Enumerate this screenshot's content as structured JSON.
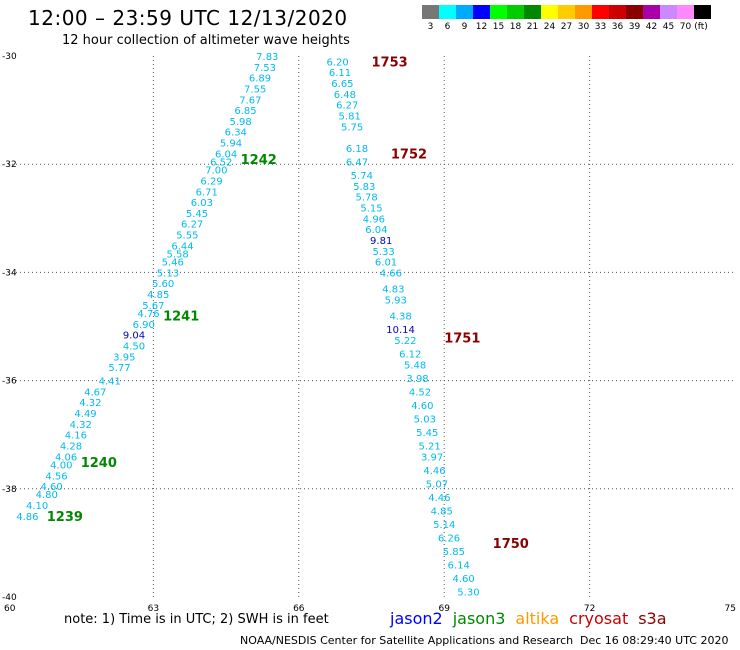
{
  "header": {
    "title": "12:00 – 23:59 UTC 12/13/2020",
    "subtitle": "12 hour collection of altimeter wave heights"
  },
  "legend": {
    "unit": "(ft)",
    "bins": [
      {
        "label": "3",
        "color": "#777777"
      },
      {
        "label": "6",
        "color": "#00ffff"
      },
      {
        "label": "9",
        "color": "#00aaff"
      },
      {
        "label": "12",
        "color": "#0000ff"
      },
      {
        "label": "15",
        "color": "#00ff00"
      },
      {
        "label": "18",
        "color": "#00cc00"
      },
      {
        "label": "21",
        "color": "#008800"
      },
      {
        "label": "24",
        "color": "#ffff00"
      },
      {
        "label": "27",
        "color": "#ffcc00"
      },
      {
        "label": "30",
        "color": "#ff9900"
      },
      {
        "label": "33",
        "color": "#ff0000"
      },
      {
        "label": "36",
        "color": "#cc0000"
      },
      {
        "label": "39",
        "color": "#880000"
      },
      {
        "label": "42",
        "color": "#aa00aa"
      },
      {
        "label": "45",
        "color": "#cc88ff"
      },
      {
        "label": "70",
        "color": "#ff88ff"
      },
      {
        "label": "",
        "color": "#000000"
      }
    ]
  },
  "axes": {
    "lon_min": 60,
    "lon_max": 75,
    "lat_min": -40,
    "lat_max": -30,
    "x_ticks": [
      60,
      63,
      66,
      69,
      72,
      75
    ],
    "x_tick_labels": [
      "60",
      "63",
      "66",
      "69",
      "72",
      "75"
    ],
    "y_ticks": [
      -30,
      -32,
      -34,
      -36,
      -38,
      -40
    ],
    "y_tick_labels": [
      "-30",
      "-32",
      "-34",
      "-36",
      "-38",
      "-40"
    ],
    "grid": true
  },
  "colors": {
    "swh_low": "#00bbee",
    "swh_high": "#0000cc",
    "jason2": "#0000ff",
    "jason3": "#008800",
    "altika": "#ff9900",
    "cryosat": "#cc0000",
    "s3a": "#880000"
  },
  "tracks": [
    {
      "pass_labels": [
        {
          "text": "1242",
          "lon": 64.8,
          "lat": -31.9,
          "color": "#008800"
        },
        {
          "text": "1241",
          "lon": 63.2,
          "lat": -34.8,
          "color": "#008800"
        },
        {
          "text": "1240",
          "lon": 61.5,
          "lat": -37.5,
          "color": "#008800"
        },
        {
          "text": "1239",
          "lon": 60.8,
          "lat": -38.5,
          "color": "#008800"
        }
      ],
      "points": [
        {
          "v": "7.83",
          "lon": 65.35,
          "lat": -30.0
        },
        {
          "v": "7.53",
          "lon": 65.3,
          "lat": -30.2
        },
        {
          "v": "6.89",
          "lon": 65.2,
          "lat": -30.4
        },
        {
          "v": "7.55",
          "lon": 65.1,
          "lat": -30.6
        },
        {
          "v": "7.67",
          "lon": 65.0,
          "lat": -30.8
        },
        {
          "v": "6.85",
          "lon": 64.9,
          "lat": -31.0
        },
        {
          "v": "5.98",
          "lon": 64.8,
          "lat": -31.2
        },
        {
          "v": "6.34",
          "lon": 64.7,
          "lat": -31.4
        },
        {
          "v": "5.94",
          "lon": 64.6,
          "lat": -31.6
        },
        {
          "v": "6.04",
          "lon": 64.5,
          "lat": -31.8
        },
        {
          "v": "6.52",
          "lon": 64.4,
          "lat": -31.95
        },
        {
          "v": "7.00",
          "lon": 64.3,
          "lat": -32.1
        },
        {
          "v": "6.29",
          "lon": 64.2,
          "lat": -32.3
        },
        {
          "v": "6.71",
          "lon": 64.1,
          "lat": -32.5
        },
        {
          "v": "6.03",
          "lon": 64.0,
          "lat": -32.7
        },
        {
          "v": "5.45",
          "lon": 63.9,
          "lat": -32.9
        },
        {
          "v": "6.27",
          "lon": 63.8,
          "lat": -33.1
        },
        {
          "v": "5.55",
          "lon": 63.7,
          "lat": -33.3
        },
        {
          "v": "6.44",
          "lon": 63.6,
          "lat": -33.5
        },
        {
          "v": "5.58",
          "lon": 63.5,
          "lat": -33.65
        },
        {
          "v": "5.46",
          "lon": 63.4,
          "lat": -33.8
        },
        {
          "v": "5.13",
          "lon": 63.3,
          "lat": -34.0
        },
        {
          "v": "5.60",
          "lon": 63.2,
          "lat": -34.2
        },
        {
          "v": "4.85",
          "lon": 63.1,
          "lat": -34.4
        },
        {
          "v": "5.67",
          "lon": 63.0,
          "lat": -34.6
        },
        {
          "v": "4.76",
          "lon": 62.9,
          "lat": -34.75
        },
        {
          "v": "6.90",
          "lon": 62.8,
          "lat": -34.95
        },
        {
          "v": "9.04",
          "lon": 62.6,
          "lat": -35.15
        },
        {
          "v": "4.50",
          "lon": 62.6,
          "lat": -35.35
        },
        {
          "v": "3.95",
          "lon": 62.4,
          "lat": -35.55
        },
        {
          "v": "5.77",
          "lon": 62.3,
          "lat": -35.75
        },
        {
          "v": "4.41",
          "lon": 62.1,
          "lat": -36.0
        },
        {
          "v": "4.67",
          "lon": 61.8,
          "lat": -36.2
        },
        {
          "v": "4.32",
          "lon": 61.7,
          "lat": -36.4
        },
        {
          "v": "4.49",
          "lon": 61.6,
          "lat": -36.6
        },
        {
          "v": "4.32",
          "lon": 61.5,
          "lat": -36.8
        },
        {
          "v": "4.16",
          "lon": 61.4,
          "lat": -37.0
        },
        {
          "v": "4.28",
          "lon": 61.3,
          "lat": -37.2
        },
        {
          "v": "4.06",
          "lon": 61.2,
          "lat": -37.4
        },
        {
          "v": "4.00",
          "lon": 61.1,
          "lat": -37.55
        },
        {
          "v": "4.56",
          "lon": 61.0,
          "lat": -37.75
        },
        {
          "v": "4.60",
          "lon": 60.9,
          "lat": -37.95
        },
        {
          "v": "4.80",
          "lon": 60.8,
          "lat": -38.1
        },
        {
          "v": "4.10",
          "lon": 60.6,
          "lat": -38.3
        },
        {
          "v": "4.86",
          "lon": 60.4,
          "lat": -38.5
        }
      ]
    },
    {
      "pass_labels": [
        {
          "text": "1753",
          "lon": 67.5,
          "lat": -30.1,
          "color": "#880000"
        },
        {
          "text": "1752",
          "lon": 67.9,
          "lat": -31.8,
          "color": "#880000"
        },
        {
          "text": "1751",
          "lon": 69.0,
          "lat": -35.2,
          "color": "#880000"
        },
        {
          "text": "1750",
          "lon": 70.0,
          "lat": -39.0,
          "color": "#880000"
        }
      ],
      "points": [
        {
          "v": "6.20",
          "lon": 66.8,
          "lat": -30.1
        },
        {
          "v": "6.11",
          "lon": 66.85,
          "lat": -30.3
        },
        {
          "v": "6.65",
          "lon": 66.9,
          "lat": -30.5
        },
        {
          "v": "6.48",
          "lon": 66.95,
          "lat": -30.7
        },
        {
          "v": "6.27",
          "lon": 67.0,
          "lat": -30.9
        },
        {
          "v": "5.81",
          "lon": 67.05,
          "lat": -31.1
        },
        {
          "v": "5.75",
          "lon": 67.1,
          "lat": -31.3
        },
        {
          "v": "6.18",
          "lon": 67.2,
          "lat": -31.7
        },
        {
          "v": "6.47",
          "lon": 67.2,
          "lat": -31.95
        },
        {
          "v": "5.74",
          "lon": 67.3,
          "lat": -32.2
        },
        {
          "v": "5.83",
          "lon": 67.35,
          "lat": -32.4
        },
        {
          "v": "5.78",
          "lon": 67.4,
          "lat": -32.6
        },
        {
          "v": "5.15",
          "lon": 67.5,
          "lat": -32.8
        },
        {
          "v": "4.96",
          "lon": 67.55,
          "lat": -33.0
        },
        {
          "v": "6.04",
          "lon": 67.6,
          "lat": -33.2
        },
        {
          "v": "9.81",
          "lon": 67.7,
          "lat": -33.4
        },
        {
          "v": "5.33",
          "lon": 67.75,
          "lat": -33.6
        },
        {
          "v": "6.01",
          "lon": 67.8,
          "lat": -33.8
        },
        {
          "v": "4.66",
          "lon": 67.9,
          "lat": -34.0
        },
        {
          "v": "4.83",
          "lon": 67.95,
          "lat": -34.3
        },
        {
          "v": "5.93",
          "lon": 68.0,
          "lat": -34.5
        },
        {
          "v": "4.38",
          "lon": 68.1,
          "lat": -34.8
        },
        {
          "v": "10.14",
          "lon": 68.1,
          "lat": -35.05
        },
        {
          "v": "5.22",
          "lon": 68.2,
          "lat": -35.25
        },
        {
          "v": "6.12",
          "lon": 68.3,
          "lat": -35.5
        },
        {
          "v": "5.48",
          "lon": 68.4,
          "lat": -35.7
        },
        {
          "v": "3.98",
          "lon": 68.45,
          "lat": -35.95
        },
        {
          "v": "4.52",
          "lon": 68.5,
          "lat": -36.2
        },
        {
          "v": "4.60",
          "lon": 68.55,
          "lat": -36.45
        },
        {
          "v": "5.03",
          "lon": 68.6,
          "lat": -36.7
        },
        {
          "v": "5.45",
          "lon": 68.65,
          "lat": -36.95
        },
        {
          "v": "5.21",
          "lon": 68.7,
          "lat": -37.2
        },
        {
          "v": "3.97",
          "lon": 68.75,
          "lat": -37.4
        },
        {
          "v": "4.46",
          "lon": 68.8,
          "lat": -37.65
        },
        {
          "v": "5.07",
          "lon": 68.85,
          "lat": -37.9
        },
        {
          "v": "4.46",
          "lon": 68.9,
          "lat": -38.15
        },
        {
          "v": "4.85",
          "lon": 68.95,
          "lat": -38.4
        },
        {
          "v": "5.14",
          "lon": 69.0,
          "lat": -38.65
        },
        {
          "v": "6.26",
          "lon": 69.1,
          "lat": -38.9
        },
        {
          "v": "5.85",
          "lon": 69.2,
          "lat": -39.15
        },
        {
          "v": "6.14",
          "lon": 69.3,
          "lat": -39.4
        },
        {
          "v": "4.60",
          "lon": 69.4,
          "lat": -39.65
        },
        {
          "v": "5.30",
          "lon": 69.5,
          "lat": -39.9
        }
      ]
    }
  ],
  "footer": {
    "note": "note:  1) Time is in UTC;  2) SWH is in feet",
    "satellites": [
      {
        "name": "jason2",
        "color": "#0000ff"
      },
      {
        "name": "jason3",
        "color": "#008800"
      },
      {
        "name": "altika",
        "color": "#ff9900"
      },
      {
        "name": "cryosat",
        "color": "#cc0000"
      },
      {
        "name": "s3a",
        "color": "#880000"
      }
    ],
    "credit": "NOAA/NESDIS Center for Satellite Applications and Research",
    "timestamp": "Dec 16 08:29:40 UTC 2020"
  }
}
